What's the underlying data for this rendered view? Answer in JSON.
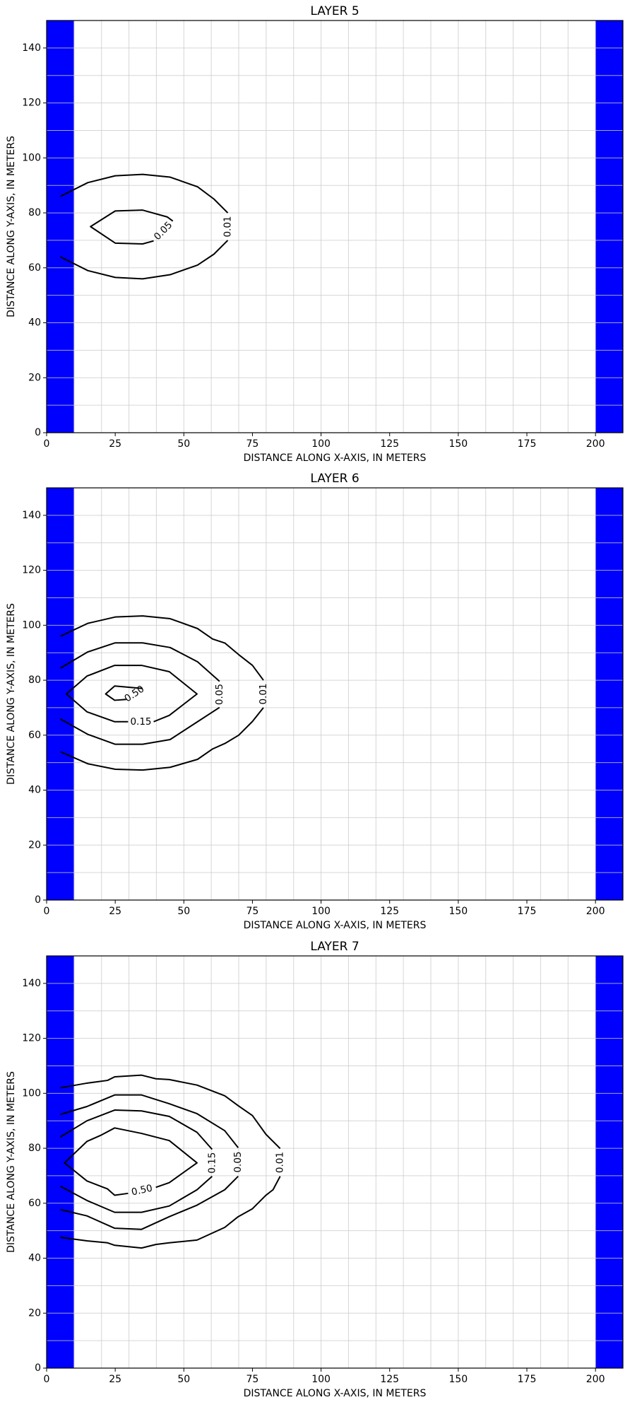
{
  "chart_data": [
    {
      "type": "contour",
      "title": "LAYER 5",
      "xlabel": "DISTANCE ALONG X-AXIS, IN METERS",
      "ylabel": "DISTANCE ALONG Y-AXIS, IN METERS",
      "xlim": [
        0,
        210
      ],
      "ylim": [
        0,
        150
      ],
      "xticks": [
        0,
        25,
        50,
        75,
        100,
        125,
        150,
        175,
        200
      ],
      "yticks": [
        0,
        20,
        40,
        60,
        80,
        100,
        120,
        140
      ],
      "grid_x": [
        10,
        20,
        30,
        40,
        50,
        60,
        70,
        80,
        90,
        100,
        110,
        120,
        130,
        140,
        150,
        160,
        170,
        180,
        190,
        200
      ],
      "grid_y": [
        10,
        20,
        30,
        40,
        50,
        60,
        70,
        80,
        90,
        100,
        110,
        120,
        130,
        140
      ],
      "grid_color": "#cccccc",
      "region_color": "#0000ff",
      "line_color": "#000000",
      "regions": [
        {
          "xlim": [
            0,
            10
          ]
        },
        {
          "xlim": [
            200,
            210
          ]
        }
      ],
      "contours": [
        {
          "label": "0.01",
          "x": [
            5,
            15,
            25,
            35,
            45,
            55,
            61,
            66,
            null,
            66,
            61,
            55,
            45,
            35,
            25,
            15,
            5
          ],
          "y": [
            86,
            91,
            93.5,
            94,
            93,
            89.5,
            85,
            80,
            null,
            70,
            65,
            61,
            57.5,
            56,
            56.5,
            59,
            64
          ]
        },
        {
          "label": "0.05",
          "x": [
            46,
            44,
            35,
            25,
            16,
            25,
            35,
            39
          ],
          "y": [
            77,
            78.5,
            81,
            80.7,
            75,
            69,
            68.7,
            69.8
          ]
        }
      ]
    },
    {
      "type": "contour",
      "title": "LAYER 6",
      "xlabel": "DISTANCE ALONG X-AXIS, IN METERS",
      "ylabel": "DISTANCE ALONG Y-AXIS, IN METERS",
      "xlim": [
        0,
        210
      ],
      "ylim": [
        0,
        150
      ],
      "xticks": [
        0,
        25,
        50,
        75,
        100,
        125,
        150,
        175,
        200
      ],
      "yticks": [
        0,
        20,
        40,
        60,
        80,
        100,
        120,
        140
      ],
      "grid_x": [
        10,
        20,
        30,
        40,
        50,
        60,
        70,
        80,
        90,
        100,
        110,
        120,
        130,
        140,
        150,
        160,
        170,
        180,
        190,
        200
      ],
      "grid_y": [
        10,
        20,
        30,
        40,
        50,
        60,
        70,
        80,
        90,
        100,
        110,
        120,
        130,
        140
      ],
      "grid_color": "#cccccc",
      "region_color": "#0000ff",
      "line_color": "#000000",
      "regions": [
        {
          "xlim": [
            0,
            10
          ]
        },
        {
          "xlim": [
            200,
            210
          ]
        }
      ],
      "contours": [
        {
          "label": "0.01",
          "x": [
            5,
            15,
            25,
            35,
            45,
            55,
            60.5,
            65,
            70,
            75,
            79,
            null,
            79,
            75,
            70,
            65,
            60.5,
            55,
            45,
            35,
            25,
            15,
            5
          ],
          "y": [
            96,
            100.7,
            103,
            103.4,
            102.4,
            98.8,
            95,
            93.5,
            89.3,
            85.4,
            80,
            null,
            70,
            65,
            60,
            57,
            55,
            51.2,
            48.3,
            47.3,
            47.6,
            49.6,
            54
          ]
        },
        {
          "label": "0.05",
          "x": [
            5,
            15,
            25,
            35,
            45,
            55,
            63,
            null,
            63,
            55,
            45,
            35,
            25,
            15,
            5
          ],
          "y": [
            84.4,
            90.3,
            93.6,
            93.6,
            91.9,
            86.7,
            79.6,
            null,
            70.1,
            64.9,
            58.4,
            56.7,
            56.7,
            60.3,
            65.9
          ]
        },
        {
          "label": "0.15",
          "x": [
            29.7,
            24.8,
            14.7,
            7.2,
            14.7,
            24.8,
            34.6,
            44.7,
            54.8,
            44.7,
            39
          ],
          "y": [
            64.9,
            64.9,
            68.5,
            75,
            81.5,
            85.4,
            85.4,
            83.1,
            75,
            67.2,
            64.9
          ]
        },
        {
          "label": "0.50",
          "x": [
            35,
            24.8,
            21.5,
            24.8,
            29
          ],
          "y": [
            77,
            77.9,
            75,
            72.7,
            73
          ]
        }
      ]
    },
    {
      "type": "contour",
      "title": "LAYER 7",
      "xlabel": "DISTANCE ALONG X-AXIS, IN METERS",
      "ylabel": "DISTANCE ALONG Y-AXIS, IN METERS",
      "xlim": [
        0,
        210
      ],
      "ylim": [
        0,
        150
      ],
      "xticks": [
        0,
        25,
        50,
        75,
        100,
        125,
        150,
        175,
        200
      ],
      "yticks": [
        0,
        20,
        40,
        60,
        80,
        100,
        120,
        140
      ],
      "grid_x": [
        10,
        20,
        30,
        40,
        50,
        60,
        70,
        80,
        90,
        100,
        110,
        120,
        130,
        140,
        150,
        160,
        170,
        180,
        190,
        200
      ],
      "grid_y": [
        10,
        20,
        30,
        40,
        50,
        60,
        70,
        80,
        90,
        100,
        110,
        120,
        130,
        140
      ],
      "grid_color": "#cccccc",
      "region_color": "#0000ff",
      "line_color": "#000000",
      "regions": [
        {
          "xlim": [
            0,
            10
          ]
        },
        {
          "xlim": [
            200,
            210
          ]
        }
      ],
      "contours": [
        {
          "label": "0.01",
          "x": [
            5,
            14.7,
            22.2,
            24.8,
            34.6,
            39.8,
            44.7,
            54.8,
            64.9,
            69.8,
            75,
            79.9,
            85.1,
            null,
            85.1,
            82.5,
            79.9,
            75,
            69.8,
            64.9,
            54.8,
            44.7,
            39.8,
            34.6,
            24.8,
            22.2,
            14.7,
            5
          ],
          "y": [
            102,
            103.7,
            104.7,
            106,
            106.6,
            105.3,
            105,
            103,
            99.1,
            95.5,
            91.9,
            85.1,
            79.9,
            null,
            69.8,
            64.9,
            62.9,
            58,
            55.1,
            51.2,
            46.6,
            45.6,
            45,
            43.7,
            44.7,
            45.6,
            46.3,
            47.6
          ]
        },
        {
          "label": "0.05",
          "x": [
            5,
            14.7,
            24.8,
            34.6,
            44.7,
            54.8,
            64.9,
            69.8,
            null,
            69.8,
            64.9,
            54.8,
            44.7,
            34.6,
            24.8,
            14.7,
            5
          ],
          "y": [
            92.3,
            95.2,
            99.4,
            99.4,
            96.2,
            92.6,
            86.4,
            80.2,
            null,
            69.8,
            64.9,
            59.3,
            55.1,
            50.5,
            50.9,
            55.4,
            57.7
          ]
        },
        {
          "label": "0.15",
          "x": [
            5,
            14.7,
            24.8,
            34.6,
            44.7,
            54.8,
            60.3,
            null,
            60.3,
            54.8,
            44.7,
            34.6,
            24.8,
            14.7,
            5
          ],
          "y": [
            84.1,
            90,
            93.9,
            93.6,
            91.6,
            85.8,
            79.6,
            null,
            69.8,
            64.9,
            59,
            56.7,
            56.7,
            61,
            66.2
          ]
        },
        {
          "label": "0.50",
          "x": [
            29.7,
            24.8,
            22.2,
            14.7,
            6.5,
            14.7,
            19.9,
            24.8,
            34.6,
            44.7,
            54.8,
            44.7,
            39.8
          ],
          "y": [
            63.6,
            62.9,
            65.2,
            68.1,
            74.7,
            82.5,
            84.8,
            87.4,
            85.4,
            82.8,
            74.7,
            67.5,
            65.8
          ]
        }
      ]
    }
  ]
}
